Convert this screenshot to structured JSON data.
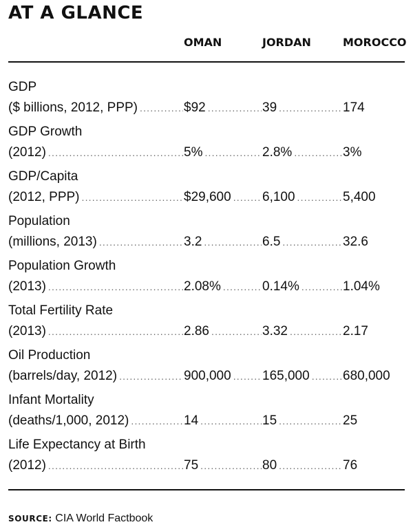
{
  "title": "AT A GLANCE",
  "columns": [
    "OMAN",
    "JORDAN",
    "MOROCCO"
  ],
  "rows": [
    {
      "label": "GDP",
      "sublabel": "($ billions, 2012, PPP)",
      "values": [
        "$92",
        "39",
        "174"
      ]
    },
    {
      "label": "GDP Growth",
      "sublabel": "(2012)",
      "values": [
        "5%",
        "2.8%",
        "3%"
      ]
    },
    {
      "label": "GDP/Capita",
      "sublabel": "(2012, PPP)",
      "values": [
        "$29,600",
        "6,100",
        "5,400"
      ]
    },
    {
      "label": "Population",
      "sublabel": "(millions, 2013)",
      "values": [
        "3.2",
        "6.5",
        "32.6"
      ]
    },
    {
      "label": "Population Growth",
      "sublabel": "(2013)",
      "values": [
        "2.08%",
        "0.14%",
        "1.04%"
      ]
    },
    {
      "label": "Total Fertility Rate",
      "sublabel": "(2013)",
      "values": [
        "2.86",
        "3.32",
        "2.17"
      ]
    },
    {
      "label": "Oil Production",
      "sublabel": "(barrels/day, 2012)",
      "values": [
        "900,000",
        "165,000",
        "680,000"
      ]
    },
    {
      "label": "Infant Mortality",
      "sublabel": "(deaths/1,000, 2012)",
      "values": [
        "14",
        "15",
        "25"
      ]
    },
    {
      "label": "Life Expectancy at Birth",
      "sublabel": "(2012)",
      "values": [
        "75",
        "80",
        "76"
      ]
    }
  ],
  "source": {
    "label": "SOURCE:",
    "text": "CIA World Factbook"
  }
}
